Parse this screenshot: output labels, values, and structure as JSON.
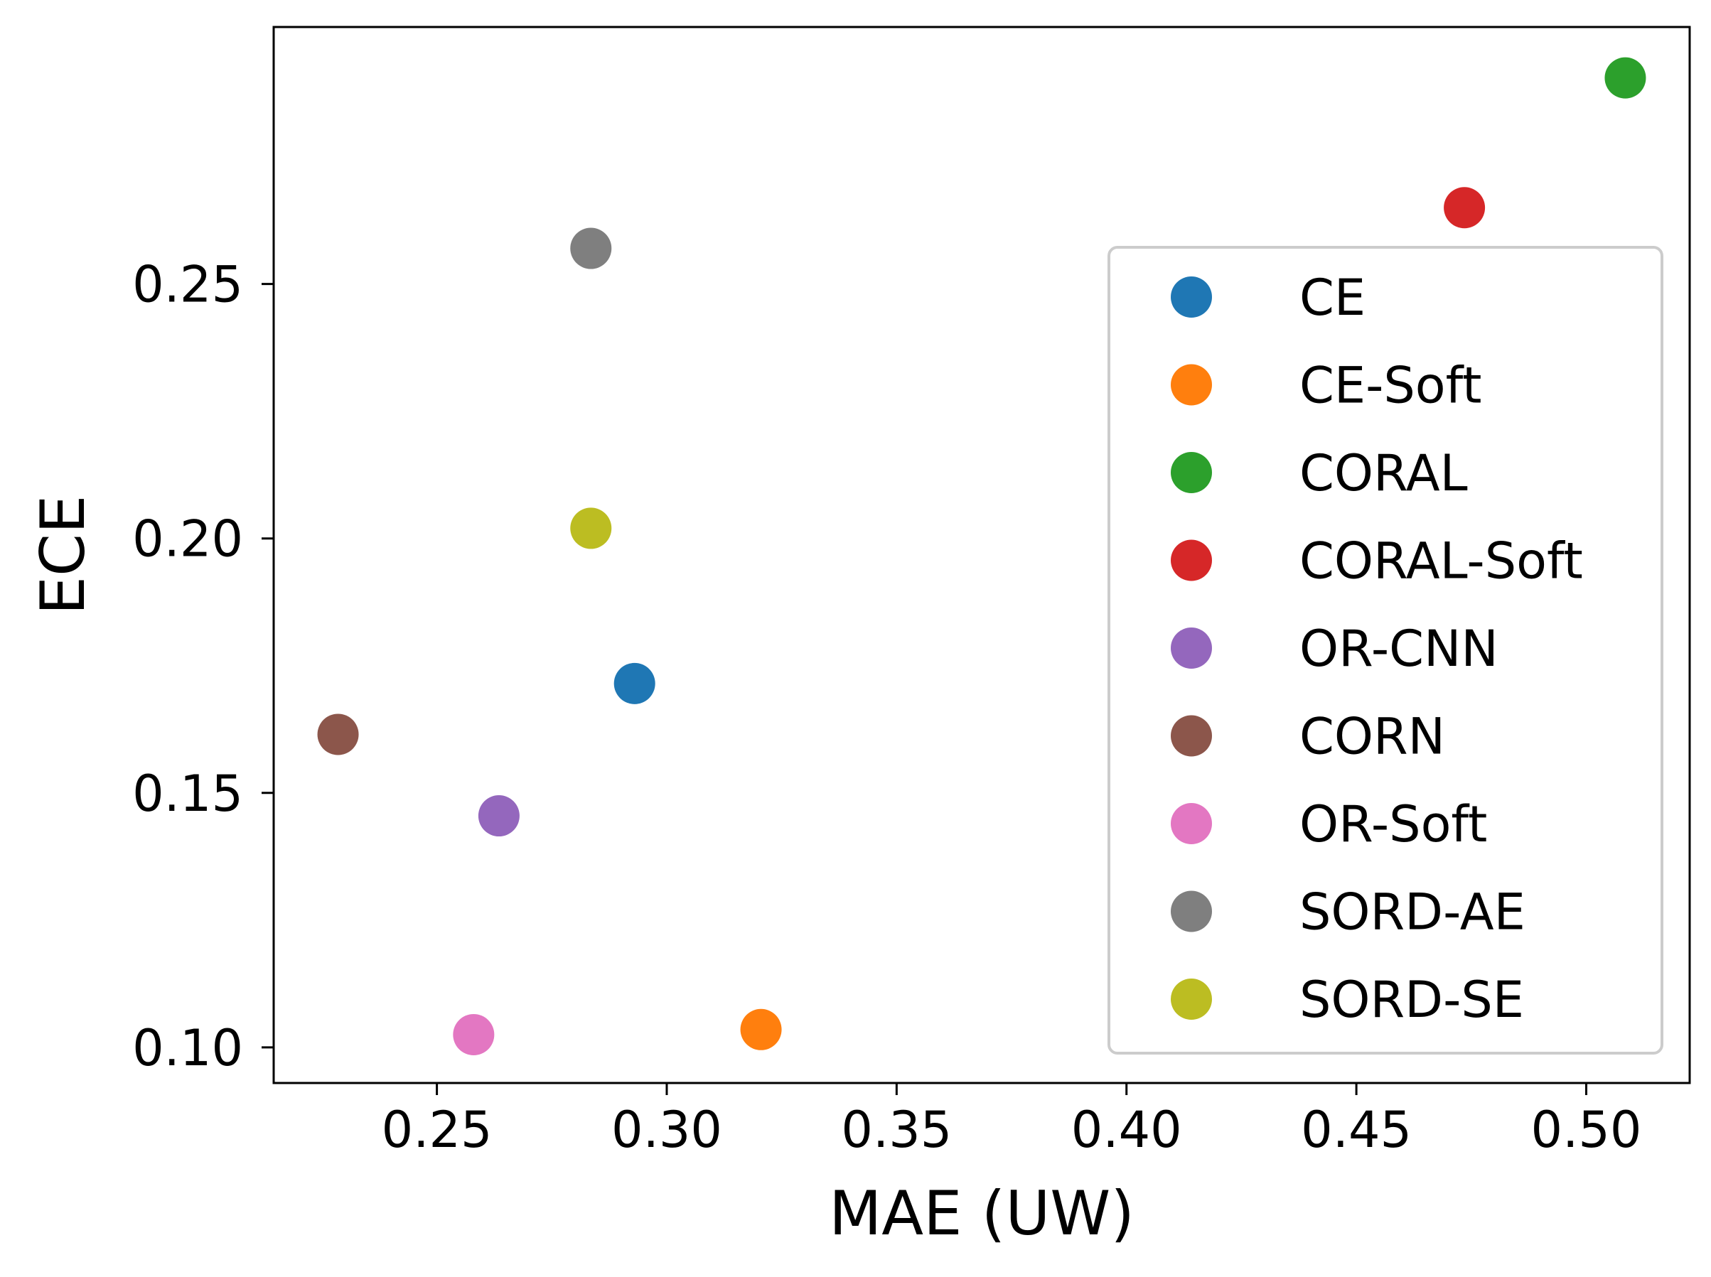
{
  "chart_data": {
    "type": "scatter",
    "title": "",
    "xlabel": "MAE (UW)",
    "ylabel": "ECE",
    "xlim": [
      0.2145,
      0.5225
    ],
    "ylim": [
      0.093,
      0.3005
    ],
    "xticks": [
      0.25,
      0.3,
      0.35,
      0.4,
      0.45,
      0.5
    ],
    "xtick_labels": [
      "0.25",
      "0.30",
      "0.35",
      "0.40",
      "0.45",
      "0.50"
    ],
    "yticks": [
      0.1,
      0.15,
      0.2,
      0.25
    ],
    "ytick_labels": [
      "0.10",
      "0.15",
      "0.20",
      "0.25"
    ],
    "grid": false,
    "legend_position": "right",
    "series": [
      {
        "name": "CE",
        "color": "#1f77b4",
        "x": 0.293,
        "y": 0.1715
      },
      {
        "name": "CE-Soft",
        "color": "#ff7f0e",
        "x": 0.3205,
        "y": 0.1035
      },
      {
        "name": "CORAL",
        "color": "#2ca02c",
        "x": 0.5085,
        "y": 0.2905
      },
      {
        "name": "CORAL-Soft",
        "color": "#d62728",
        "x": 0.4735,
        "y": 0.265
      },
      {
        "name": "OR-CNN",
        "color": "#9467bd",
        "x": 0.2635,
        "y": 0.1455
      },
      {
        "name": "CORN",
        "color": "#8c564b",
        "x": 0.2285,
        "y": 0.1615
      },
      {
        "name": "OR-Soft",
        "color": "#e377c2",
        "x": 0.258,
        "y": 0.1025
      },
      {
        "name": "SORD-AE",
        "color": "#7f7f7f",
        "x": 0.2835,
        "y": 0.257
      },
      {
        "name": "SORD-SE",
        "color": "#bcbd22",
        "x": 0.2835,
        "y": 0.202
      }
    ]
  }
}
